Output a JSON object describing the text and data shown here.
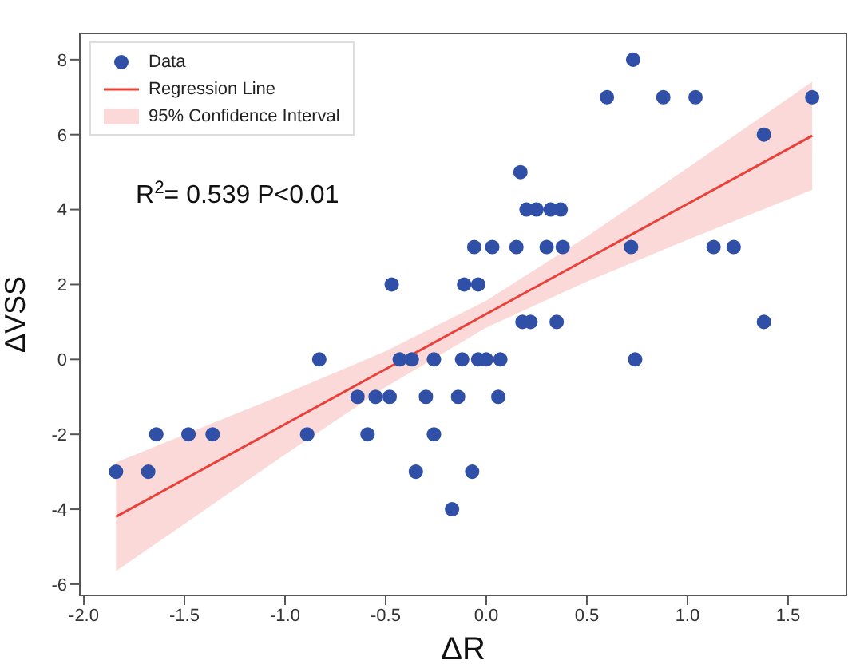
{
  "chart_data": {
    "type": "scatter",
    "xlabel": "ΔR",
    "ylabel": "ΔVSS",
    "xlim": [
      -2.02,
      1.79
    ],
    "ylim": [
      -6.3,
      8.7
    ],
    "xticks": [
      {
        "value": -2,
        "label": "-2.0"
      },
      {
        "value": -1.5,
        "label": "-1.5"
      },
      {
        "value": -1,
        "label": "-1.0"
      },
      {
        "value": -0.5,
        "label": "-0.5"
      },
      {
        "value": 0,
        "label": "0.0"
      },
      {
        "value": 0.5,
        "label": "0.5"
      },
      {
        "value": 1,
        "label": "1.0"
      },
      {
        "value": 1.5,
        "label": "1.5"
      }
    ],
    "yticks": [
      -6,
      -4,
      -2,
      0,
      2,
      4,
      6,
      8
    ],
    "grid": false,
    "legend": "top left",
    "annotations": [
      "R$^{2}$= 0.539  P<0.01",
      "95% Confidence Interval"
    ],
    "series": [
      {
        "type": "line",
        "name": "Regression Line",
        "color": "#e8413a",
        "x": [
          -1.84,
          -1.0,
          -0.5,
          0,
          0.5,
          1.0,
          1.62
        ],
        "values": [
          -4.2,
          -1.73,
          -0.26,
          1.21,
          2.68,
          4.15,
          5.97
        ],
        "lower": [
          -5.65,
          -2.54,
          -0.74,
          0.85,
          2.08,
          3.19,
          4.53
        ],
        "upper": [
          -2.75,
          -0.92,
          0.22,
          1.57,
          3.28,
          5.11,
          7.41
        ]
      },
      {
        "name": "Data",
        "color": "#3050a8",
        "marker": "circle",
        "x": [
          0.73,
          0.6,
          0.88,
          1.04,
          1.62,
          1.38,
          0.17,
          0.2,
          0.25,
          0.32,
          0.37,
          -0.06,
          0.03,
          0.15,
          0.3,
          0.38,
          0.72,
          1.13,
          1.23,
          -0.11,
          -0.04,
          -0.47,
          0.18,
          0.22,
          0.35,
          1.38,
          -0.83,
          -0.43,
          -0.37,
          -0.26,
          -0.12,
          -0.04,
          0.0,
          0.07,
          0.74,
          -0.64,
          -0.55,
          -0.48,
          -0.3,
          -0.14,
          0.06,
          -1.64,
          -1.48,
          -1.36,
          -0.89,
          -0.59,
          -0.26,
          -1.84,
          -1.68,
          -0.35,
          -0.07,
          -0.17
        ],
        "values": [
          8,
          7,
          7,
          7,
          7,
          6,
          5,
          4,
          4,
          4,
          4,
          3,
          3,
          3,
          3,
          3,
          3,
          3,
          3,
          2,
          2,
          2,
          1,
          1,
          1,
          1,
          0,
          0,
          0,
          0,
          0,
          0,
          0,
          0,
          0,
          -1,
          -1,
          -1,
          -1,
          -1,
          -1,
          -2,
          -2,
          -2,
          -2,
          -2,
          -2,
          -3,
          -3,
          -3,
          -3,
          -4
        ]
      }
    ]
  }
}
